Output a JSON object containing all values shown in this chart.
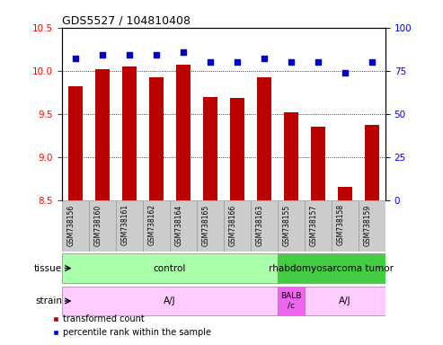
{
  "title": "GDS5527 / 104810408",
  "samples": [
    "GSM738156",
    "GSM738160",
    "GSM738161",
    "GSM738162",
    "GSM738164",
    "GSM738165",
    "GSM738166",
    "GSM738163",
    "GSM738155",
    "GSM738157",
    "GSM738158",
    "GSM738159"
  ],
  "transformed_count": [
    9.82,
    10.02,
    10.05,
    9.92,
    10.07,
    9.7,
    9.68,
    9.92,
    9.52,
    9.35,
    8.65,
    9.37
  ],
  "percentile_rank": [
    82,
    84,
    84,
    84,
    86,
    80,
    80,
    82,
    80,
    80,
    74,
    80
  ],
  "ylim_left": [
    8.5,
    10.5
  ],
  "ylim_right": [
    0,
    100
  ],
  "yticks_left": [
    8.5,
    9.0,
    9.5,
    10.0,
    10.5
  ],
  "yticks_right": [
    0,
    25,
    50,
    75,
    100
  ],
  "bar_color": "#bb0000",
  "dot_color": "#0000cc",
  "bar_baseline": 8.5,
  "tissue_labels": [
    {
      "text": "control",
      "start": 0,
      "end": 8,
      "color": "#aaffaa"
    },
    {
      "text": "rhabdomyosarcoma tumor",
      "start": 8,
      "end": 12,
      "color": "#44cc44"
    }
  ],
  "strain_labels": [
    {
      "text": "A/J",
      "start": 0,
      "end": 8,
      "color": "#ffccff"
    },
    {
      "text": "BALB\n/c",
      "start": 8,
      "end": 9,
      "color": "#ee66ee"
    },
    {
      "text": "A/J",
      "start": 9,
      "end": 12,
      "color": "#ffccff"
    }
  ],
  "row_label_tissue": "tissue",
  "row_label_strain": "strain",
  "legend_bar": "transformed count",
  "legend_dot": "percentile rank within the sample",
  "sample_box_color": "#cccccc",
  "sample_box_edge": "#999999"
}
